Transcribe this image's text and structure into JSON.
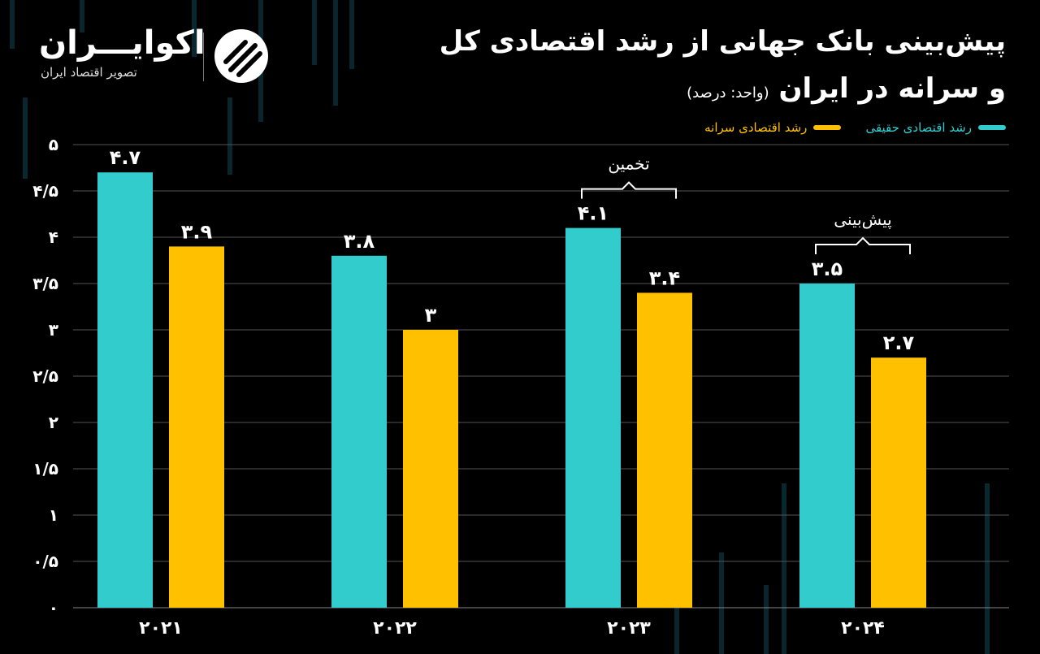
{
  "title": {
    "line1": "پیش‌بینی بانک جهانی از رشد اقتصادی کل",
    "line2": "و سرانه در ایران",
    "unit": "(واحد: درصد)"
  },
  "logo": {
    "name": "اکوایـــران",
    "subtitle": "تصویر اقتصاد ایران"
  },
  "annotations": {
    "estimate": "تخمین",
    "forecast": "پیش‌بینی"
  },
  "colors": {
    "real": "#33cccc",
    "per_capita": "#ffc000",
    "grid": "#555555",
    "text": "#ffffff"
  },
  "chart_data": {
    "type": "bar",
    "categories": [
      "۲۰۲۱",
      "۲۰۲۲",
      "۲۰۲۳",
      "۲۰۲۴"
    ],
    "series": [
      {
        "name": "رشد اقتصادی حقیقی",
        "values": [
          4.7,
          3.8,
          4.1,
          3.5
        ],
        "labels": [
          "۴.۷",
          "۳.۸",
          "۴.۱",
          "۳.۵"
        ]
      },
      {
        "name": "رشد اقتصادی سرانه",
        "values": [
          3.9,
          3.0,
          3.4,
          2.7
        ],
        "labels": [
          "۳.۹",
          "۳",
          "۳.۴",
          "۲.۷"
        ]
      }
    ],
    "yticks": [
      0,
      0.5,
      1,
      1.5,
      2,
      2.5,
      3,
      3.5,
      4,
      4.5,
      5
    ],
    "ytick_labels": [
      "۰",
      "۰/۵",
      "۱",
      "۱/۵",
      "۲",
      "۲/۵",
      "۳",
      "۳/۵",
      "۴",
      "۴/۵",
      "۵"
    ],
    "ylim": [
      0,
      5
    ],
    "grid": true,
    "legend": "top-right"
  }
}
